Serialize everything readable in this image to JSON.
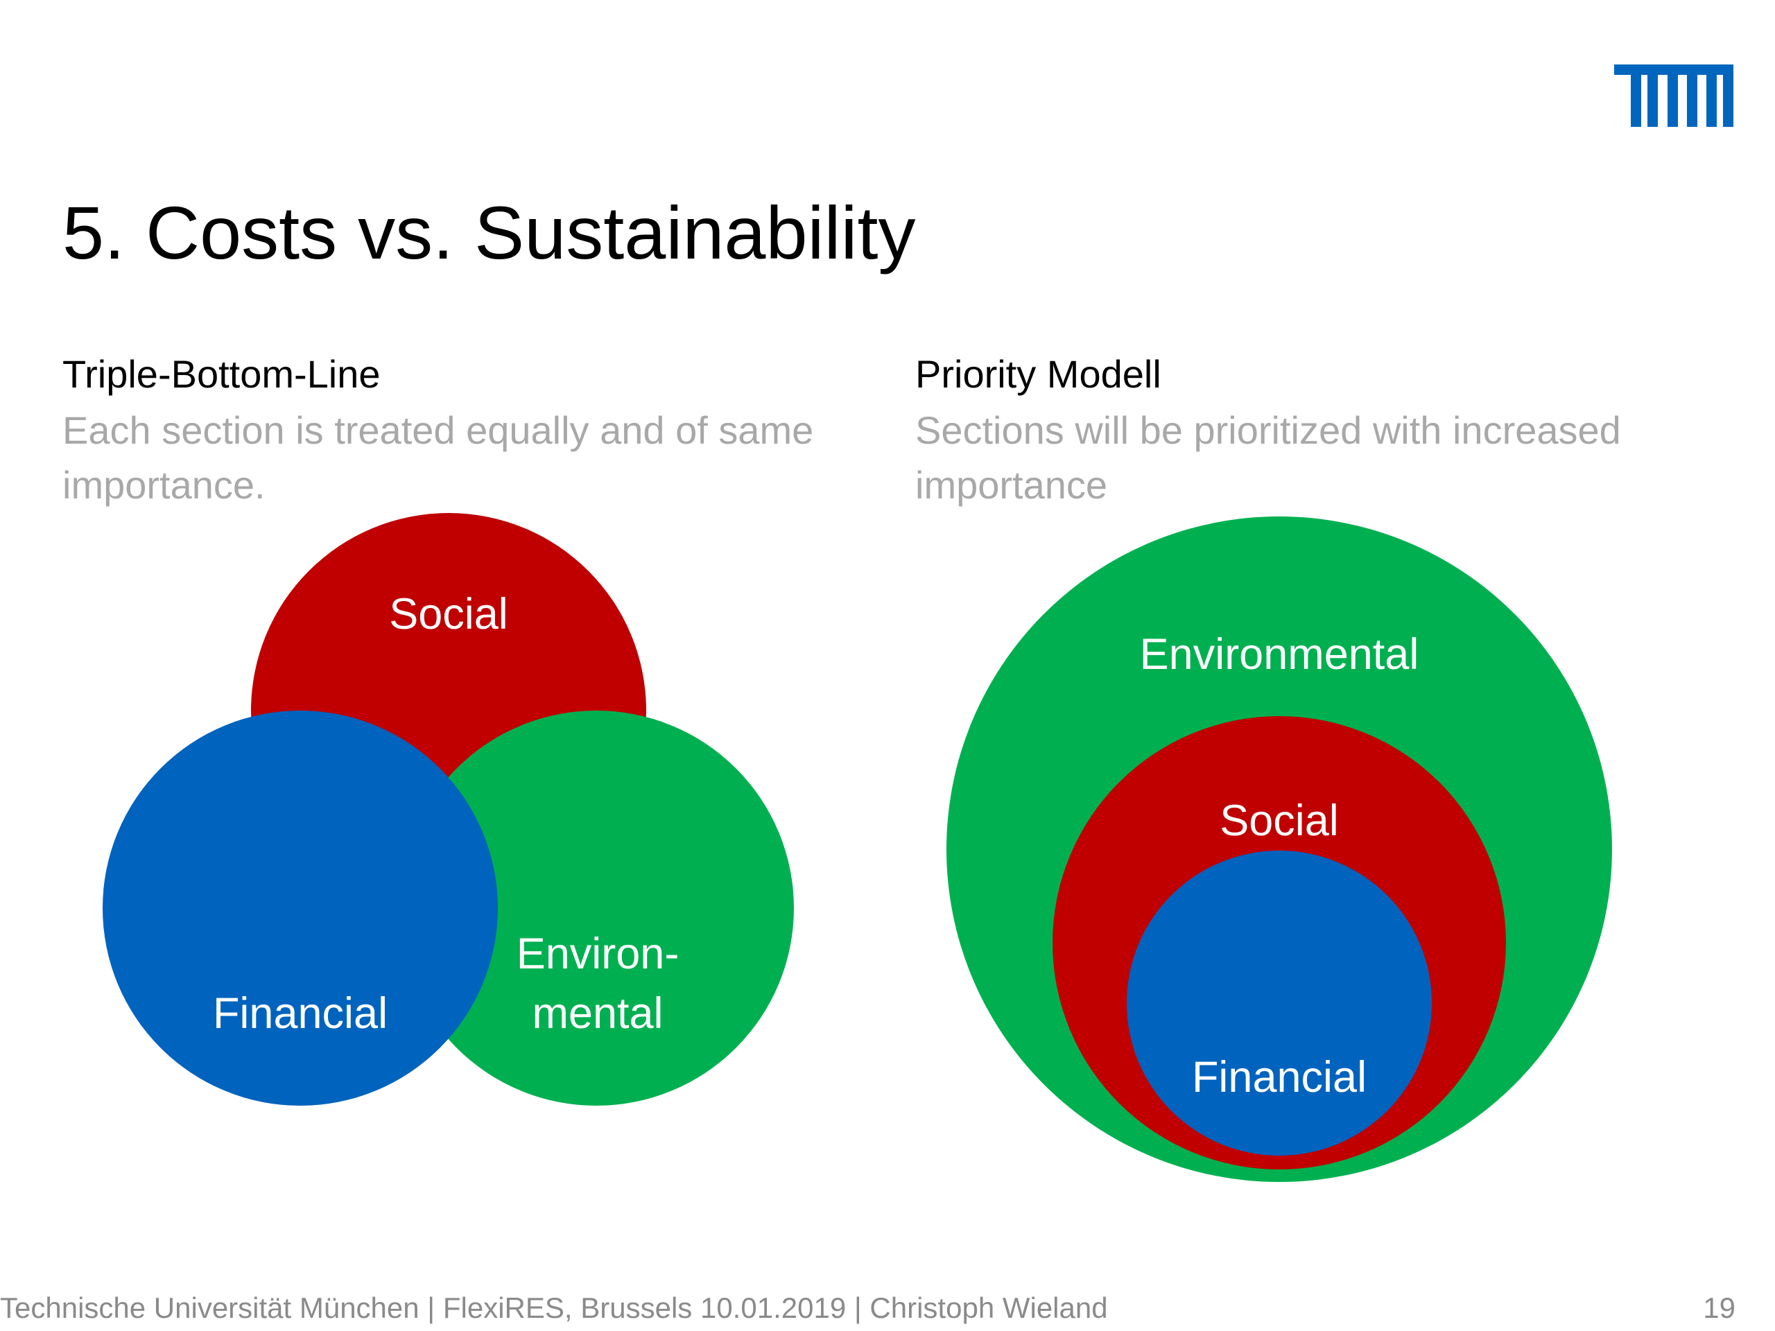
{
  "slide": {
    "title": "5. Costs vs. Sustainability",
    "logo_text": "TUM",
    "brand_color": "#0065BD"
  },
  "left_panel": {
    "heading": "Triple-Bottom-Line",
    "description": "Each section is treated equally and of same importance.",
    "labels": {
      "social": "Social",
      "financial": "Financial",
      "environmental_line1": "Environ-",
      "environmental_line2": "mental"
    }
  },
  "right_panel": {
    "heading": "Priority Modell",
    "description": "Sections will be prioritized with increased importance",
    "labels": {
      "environmental": "Environmental",
      "social": "Social",
      "financial": "Financial"
    }
  },
  "colors": {
    "social": "#C00000",
    "financial": "#0063BE",
    "environmental": "#00B050",
    "description_gray": "#A8A8A8",
    "footer_gray": "#8A8A8A"
  },
  "footer": {
    "text": "Technische Universität München | FlexiRES, Brussels 10.01.2019 | Christoph Wieland",
    "page_number": "19"
  }
}
